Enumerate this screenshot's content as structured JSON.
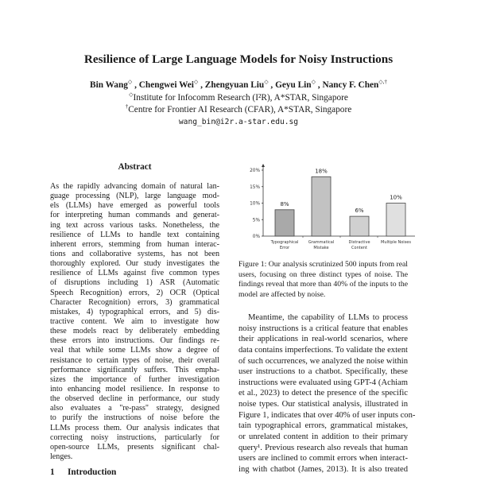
{
  "paper": {
    "title": "Resilience of Large Language Models for Noisy Instructions",
    "authors": [
      {
        "name": "Bin Wang",
        "marks": "◇"
      },
      {
        "name": "Chengwei Wei",
        "marks": "◇"
      },
      {
        "name": "Zhengyuan Liu",
        "marks": "◇"
      },
      {
        "name": "Geyu Lin",
        "marks": "◇"
      },
      {
        "name": "Nancy F. Chen",
        "marks": "◇,†"
      }
    ],
    "affiliations": [
      {
        "mark": "◇",
        "text": "Institute for Infocomm Research (I²R), A*STAR, Singapore"
      },
      {
        "mark": "†",
        "text": "Centre for Frontier AI Research (CFAR), A*STAR, Singapore"
      }
    ],
    "email": "wang_bin@i2r.a-star.edu.sg",
    "abstract_heading": "Abstract",
    "abstract_lines": [
      "As the rapidly advancing domain of natural lan-",
      "guage processing (NLP), large language mod-",
      "els (LLMs) have emerged as powerful tools",
      "for interpreting human commands and generat-",
      "ing text across various tasks. Nonetheless, the",
      "resilience of LLMs to handle text containing",
      "inherent errors, stemming from human interac-",
      "tions and collaborative systems, has not been",
      "thoroughly explored. Our study investigates the",
      "resilience of LLMs against five common types",
      "of disruptions including 1) ASR (Automatic",
      "Speech Recognition) errors, 2) OCR (Optical",
      "Character Recognition) errors, 3) grammatical",
      "mistakes, 4) typographical errors, and 5) dis-",
      "tractive content. We aim to investigate how",
      "these models react by deliberately embedding",
      "these errors into instructions. Our findings re-",
      "veal that while some LLMs show a degree of",
      "resistance to certain types of noise, their overall",
      "performance significantly suffers. This empha-",
      "sizes the importance of further investigation",
      "into enhancing model resilience. In response to",
      "the observed decline in performance, our study",
      "also evaluates a \"re-pass\" strategy, designed",
      "to purify the instructions of noise before the",
      "LLMs process them. Our analysis indicates that",
      "correcting noisy instructions, particularly for",
      "open-source LLMs, presents significant chal-",
      "lenges."
    ],
    "section": {
      "number": "1",
      "title": "Introduction"
    },
    "caption_lines": [
      "Figure 1: Our analysis scrutinized 500 inputs from real",
      "users, focusing on three distinct types of noise.  The",
      "findings reveal that more than 40% of the inputs to the",
      "model are affected by noise."
    ],
    "right_lines": [
      "Meantime, the capability of LLMs to process",
      "noisy instructions is a critical feature that enables",
      "their applications in real-world scenarios, where",
      "data contains imperfections. To validate the extent",
      "of such occurrences, we analyzed the noise within",
      "user instructions to a chatbot. Specifically, these",
      "instructions were evaluated using GPT-4 (Achiam",
      "et al., 2023) to detect the presence of the specific",
      "noise types. Our statistical analysis, illustrated in",
      "Figure 1, indicates that over 40% of user inputs con-",
      "tain typographical errors, grammatical mistakes,",
      "or unrelated content in addition to their primary",
      "query¹. Previous research also reveals that human",
      "users are inclined to commit errors when interact-",
      "ing with chatbot (James, 2013). It is also treated"
    ]
  },
  "chart_data": {
    "type": "bar",
    "categories": [
      [
        "Typographical",
        "Error"
      ],
      [
        "Grammatical",
        "Mistake"
      ],
      [
        "Distractive",
        "Content"
      ],
      [
        "Multiple Noises"
      ]
    ],
    "values": [
      8,
      18,
      6,
      10
    ],
    "data_labels": [
      "8%",
      "18%",
      "6%",
      "10%"
    ],
    "y_ticks": [
      "0%",
      "5%",
      "10%",
      "15%",
      "20%"
    ],
    "ylim": [
      0,
      20
    ],
    "unit": "%",
    "grid": false,
    "bar_colors": [
      "#a9a9a9",
      "#c2c2c2",
      "#d0d0d0",
      "#e0e0e0"
    ],
    "bar_edge": "#444444"
  }
}
